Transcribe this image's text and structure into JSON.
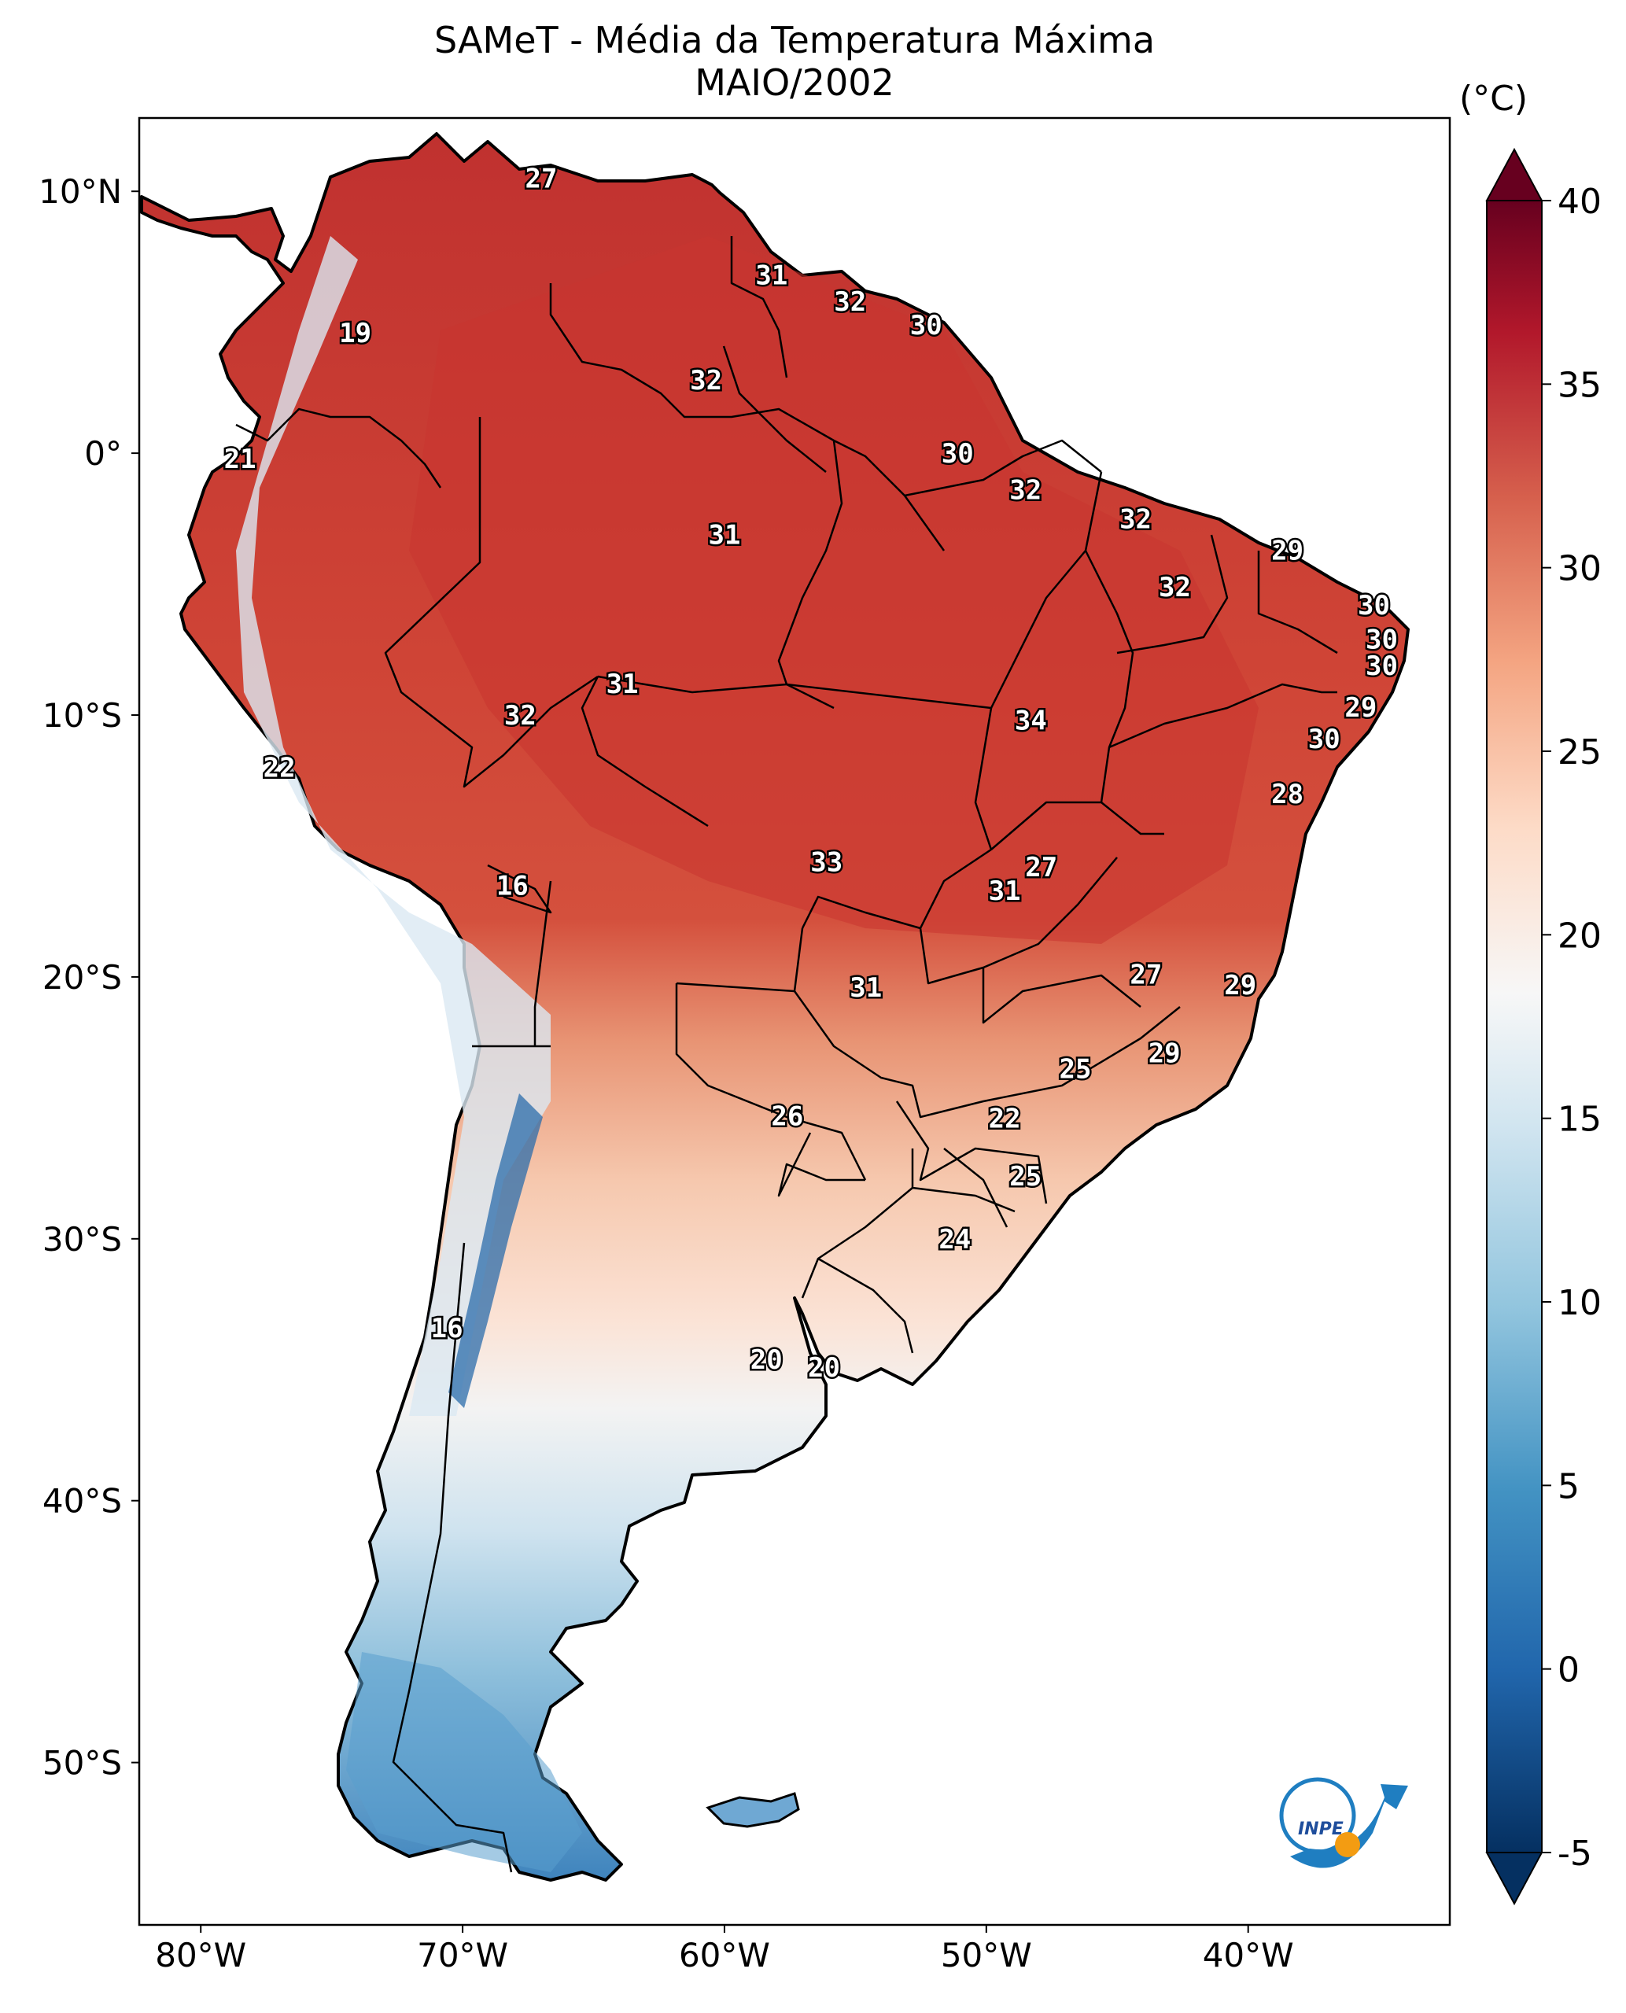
{
  "title": "SAMeT - Média da Temperatura Máxima",
  "subtitle": "MAIO/2002",
  "colorbar": {
    "unit": "(°C)",
    "ticks": [
      "-5",
      "0",
      "5",
      "10",
      "15",
      "20",
      "25",
      "30",
      "35",
      "40"
    ],
    "range": [
      -5,
      40
    ]
  },
  "axes": {
    "lat_ticks": [
      "10°N",
      "0°",
      "10°S",
      "20°S",
      "30°S",
      "40°S",
      "50°S"
    ],
    "lon_ticks": [
      "80°W",
      "70°W",
      "60°W",
      "50°W",
      "40°W"
    ]
  },
  "logo": {
    "text": "INPE"
  },
  "colors": {
    "hot": "#67001f",
    "warm": "#d6604d",
    "neutral": "#f7f7f7",
    "cool": "#4393c3",
    "cold": "#053061"
  },
  "city_labels": [
    {
      "value": "27",
      "lon": -67.0,
      "lat": 10.5
    },
    {
      "value": "19",
      "lon": -74.1,
      "lat": 4.6
    },
    {
      "value": "21",
      "lon": -78.5,
      "lat": -0.2
    },
    {
      "value": "31",
      "lon": -58.2,
      "lat": 6.8
    },
    {
      "value": "32",
      "lon": -55.2,
      "lat": 5.8
    },
    {
      "value": "30",
      "lon": -52.3,
      "lat": 4.9
    },
    {
      "value": "32",
      "lon": -60.7,
      "lat": 2.8
    },
    {
      "value": "30",
      "lon": -51.1,
      "lat": 0.0
    },
    {
      "value": "32",
      "lon": -48.5,
      "lat": -1.4
    },
    {
      "value": "31",
      "lon": -60.0,
      "lat": -3.1
    },
    {
      "value": "32",
      "lon": -44.3,
      "lat": -2.5
    },
    {
      "value": "29",
      "lon": -38.5,
      "lat": -3.7
    },
    {
      "value": "32",
      "lon": -42.8,
      "lat": -5.1
    },
    {
      "value": "30",
      "lon": -35.2,
      "lat": -5.8
    },
    {
      "value": "30",
      "lon": -34.9,
      "lat": -7.1
    },
    {
      "value": "30",
      "lon": -34.9,
      "lat": -8.1
    },
    {
      "value": "29",
      "lon": -35.7,
      "lat": -9.7
    },
    {
      "value": "31",
      "lon": -63.9,
      "lat": -8.8
    },
    {
      "value": "32",
      "lon": -67.8,
      "lat": -10.0
    },
    {
      "value": "34",
      "lon": -48.3,
      "lat": -10.2
    },
    {
      "value": "30",
      "lon": -37.1,
      "lat": -10.9
    },
    {
      "value": "22",
      "lon": -77.0,
      "lat": -12.0
    },
    {
      "value": "28",
      "lon": -38.5,
      "lat": -13.0
    },
    {
      "value": "27",
      "lon": -47.9,
      "lat": -15.8
    },
    {
      "value": "33",
      "lon": -56.1,
      "lat": -15.6
    },
    {
      "value": "31",
      "lon": -49.3,
      "lat": -16.7
    },
    {
      "value": "16",
      "lon": -68.1,
      "lat": -16.5
    },
    {
      "value": "27",
      "lon": -43.9,
      "lat": -19.9
    },
    {
      "value": "29",
      "lon": -40.3,
      "lat": -20.3
    },
    {
      "value": "31",
      "lon": -54.6,
      "lat": -20.4
    },
    {
      "value": "25",
      "lon": -46.6,
      "lat": -23.5
    },
    {
      "value": "29",
      "lon": -43.2,
      "lat": -22.9
    },
    {
      "value": "26",
      "lon": -57.6,
      "lat": -25.3
    },
    {
      "value": "22",
      "lon": -49.3,
      "lat": -25.4
    },
    {
      "value": "25",
      "lon": -48.5,
      "lat": -27.6
    },
    {
      "value": "24",
      "lon": -51.2,
      "lat": -30.0
    },
    {
      "value": "16",
      "lon": -70.6,
      "lat": -33.4
    },
    {
      "value": "20",
      "lon": -58.4,
      "lat": -34.6
    },
    {
      "value": "20",
      "lon": -56.2,
      "lat": -34.9
    }
  ]
}
